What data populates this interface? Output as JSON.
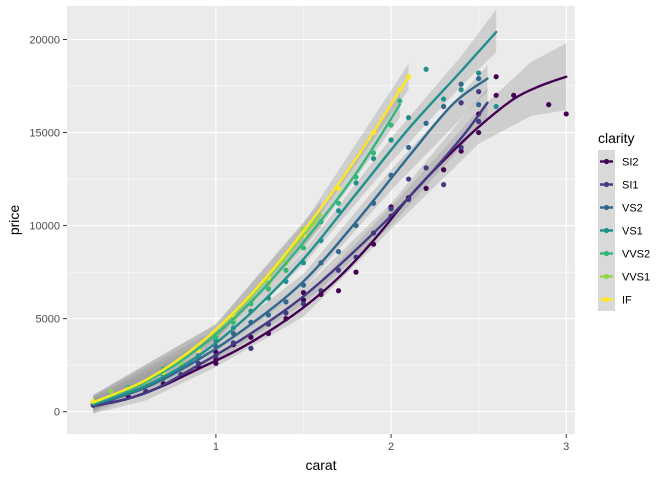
{
  "chart_data": {
    "type": "scatter",
    "xlabel": "carat",
    "ylabel": "price",
    "xlim": [
      0.15,
      3.05
    ],
    "ylim": [
      -1200,
      21800
    ],
    "x_ticks": [
      1,
      2,
      3
    ],
    "x_tick_labels": [
      "1",
      "2",
      "3"
    ],
    "y_ticks": [
      0,
      5000,
      10000,
      15000,
      20000
    ],
    "y_tick_labels": [
      "0",
      "5000",
      "10000",
      "15000",
      "20000"
    ],
    "grid": true,
    "legend": {
      "title": "clarity",
      "position": "right"
    },
    "smoothing": "loess fit with grey confidence band per series",
    "series": [
      {
        "name": "SI2",
        "color": "#440154",
        "points": [
          [
            0.3,
            350
          ],
          [
            0.5,
            800
          ],
          [
            0.7,
            1500
          ],
          [
            0.9,
            2400
          ],
          [
            1.0,
            2600
          ],
          [
            1.0,
            2800
          ],
          [
            1.0,
            3200
          ],
          [
            1.1,
            3600
          ],
          [
            1.2,
            4000
          ],
          [
            1.3,
            4200
          ],
          [
            1.4,
            5000
          ],
          [
            1.5,
            6000
          ],
          [
            1.5,
            6400
          ],
          [
            1.6,
            6300
          ],
          [
            1.7,
            6500
          ],
          [
            1.8,
            7500
          ],
          [
            1.9,
            9000
          ],
          [
            2.0,
            11000
          ],
          [
            2.0,
            10500
          ],
          [
            2.1,
            11500
          ],
          [
            2.2,
            12000
          ],
          [
            2.3,
            13000
          ],
          [
            2.4,
            14000
          ],
          [
            2.5,
            16000
          ],
          [
            2.5,
            15000
          ],
          [
            2.6,
            17000
          ],
          [
            2.6,
            18000
          ],
          [
            2.7,
            17000
          ],
          [
            2.9,
            16500
          ],
          [
            3.0,
            16000
          ]
        ],
        "fit": [
          [
            0.3,
            300
          ],
          [
            0.5,
            700
          ],
          [
            0.7,
            1400
          ],
          [
            0.9,
            2300
          ],
          [
            1.1,
            3200
          ],
          [
            1.3,
            4300
          ],
          [
            1.5,
            5600
          ],
          [
            1.7,
            7200
          ],
          [
            1.9,
            9200
          ],
          [
            2.1,
            11500
          ],
          [
            2.3,
            13500
          ],
          [
            2.5,
            15300
          ],
          [
            2.7,
            16800
          ],
          [
            2.85,
            17500
          ],
          [
            3.0,
            18000
          ]
        ],
        "band": [
          [
            0.3,
            -100,
            700
          ],
          [
            0.6,
            600,
            1300
          ],
          [
            1.0,
            2400,
            3100
          ],
          [
            1.5,
            5100,
            6100
          ],
          [
            2.0,
            9800,
            11000
          ],
          [
            2.5,
            14400,
            16200
          ],
          [
            2.8,
            15900,
            18800
          ],
          [
            3.0,
            16200,
            19800
          ]
        ]
      },
      {
        "name": "SI1",
        "color": "#443A83",
        "points": [
          [
            0.3,
            400
          ],
          [
            0.4,
            600
          ],
          [
            0.6,
            1100
          ],
          [
            0.8,
            2000
          ],
          [
            0.9,
            2600
          ],
          [
            1.0,
            3000
          ],
          [
            1.1,
            3700
          ],
          [
            1.2,
            3400
          ],
          [
            1.3,
            4700
          ],
          [
            1.4,
            5300
          ],
          [
            1.5,
            5800
          ],
          [
            1.6,
            6500
          ],
          [
            1.7,
            7600
          ],
          [
            1.8,
            8300
          ],
          [
            1.9,
            9600
          ],
          [
            2.0,
            10900
          ],
          [
            2.1,
            12500
          ],
          [
            2.1,
            11400
          ],
          [
            2.2,
            13100
          ],
          [
            2.3,
            12200
          ],
          [
            2.4,
            14200
          ],
          [
            2.4,
            16600
          ],
          [
            2.5,
            17200
          ],
          [
            2.5,
            15600
          ]
        ],
        "fit": [
          [
            0.3,
            300
          ],
          [
            0.6,
            1000
          ],
          [
            0.9,
            2500
          ],
          [
            1.2,
            4200
          ],
          [
            1.5,
            6200
          ],
          [
            1.8,
            8700
          ],
          [
            2.1,
            11500
          ],
          [
            2.4,
            14700
          ],
          [
            2.55,
            16600
          ]
        ],
        "band": [
          [
            0.3,
            -100,
            700
          ],
          [
            1.0,
            2700,
            3400
          ],
          [
            1.5,
            5800,
            6600
          ],
          [
            2.0,
            10000,
            11200
          ],
          [
            2.55,
            15800,
            17400
          ]
        ]
      },
      {
        "name": "VS2",
        "color": "#31688E",
        "points": [
          [
            0.3,
            450
          ],
          [
            0.5,
            1000
          ],
          [
            0.7,
            1800
          ],
          [
            0.9,
            2900
          ],
          [
            1.0,
            3500
          ],
          [
            1.1,
            4200
          ],
          [
            1.2,
            4800
          ],
          [
            1.3,
            5200
          ],
          [
            1.4,
            5900
          ],
          [
            1.5,
            6800
          ],
          [
            1.6,
            8000
          ],
          [
            1.7,
            8600
          ],
          [
            1.8,
            10000
          ],
          [
            1.9,
            11200
          ],
          [
            2.0,
            12700
          ],
          [
            2.1,
            14200
          ],
          [
            2.2,
            15500
          ],
          [
            2.3,
            16400
          ],
          [
            2.4,
            17600
          ],
          [
            2.5,
            17900
          ],
          [
            2.5,
            16500
          ]
        ],
        "fit": [
          [
            0.3,
            350
          ],
          [
            0.6,
            1300
          ],
          [
            0.9,
            2800
          ],
          [
            1.2,
            4700
          ],
          [
            1.5,
            7000
          ],
          [
            1.8,
            10200
          ],
          [
            2.1,
            13700
          ],
          [
            2.35,
            16500
          ],
          [
            2.55,
            17900
          ]
        ],
        "band": [
          [
            0.3,
            0,
            750
          ],
          [
            1.0,
            3200,
            3800
          ],
          [
            1.5,
            6600,
            7400
          ],
          [
            2.0,
            11900,
            13000
          ],
          [
            2.55,
            17200,
            18600
          ]
        ]
      },
      {
        "name": "VS1",
        "color": "#21908C",
        "points": [
          [
            0.3,
            500
          ],
          [
            0.5,
            1100
          ],
          [
            0.7,
            2000
          ],
          [
            0.9,
            3000
          ],
          [
            1.0,
            3800
          ],
          [
            1.1,
            4500
          ],
          [
            1.2,
            5400
          ],
          [
            1.3,
            6100
          ],
          [
            1.4,
            7000
          ],
          [
            1.5,
            8000
          ],
          [
            1.6,
            9200
          ],
          [
            1.7,
            10800
          ],
          [
            1.8,
            12300
          ],
          [
            1.9,
            13600
          ],
          [
            2.0,
            14600
          ],
          [
            2.1,
            15800
          ],
          [
            2.2,
            18400
          ],
          [
            2.3,
            16800
          ],
          [
            2.4,
            17300
          ],
          [
            2.5,
            18200
          ],
          [
            2.6,
            16400
          ]
        ],
        "fit": [
          [
            0.3,
            400
          ],
          [
            0.6,
            1400
          ],
          [
            0.9,
            3000
          ],
          [
            1.2,
            5300
          ],
          [
            1.5,
            8200
          ],
          [
            1.8,
            11700
          ],
          [
            2.1,
            15200
          ],
          [
            2.4,
            18300
          ],
          [
            2.6,
            20400
          ]
        ],
        "band": [
          [
            0.3,
            0,
            800
          ],
          [
            1.0,
            3500,
            4100
          ],
          [
            1.5,
            7900,
            8600
          ],
          [
            2.0,
            13400,
            14700
          ],
          [
            2.4,
            17500,
            19100
          ],
          [
            2.6,
            19300,
            21600
          ]
        ]
      },
      {
        "name": "VVS2",
        "color": "#35B779",
        "points": [
          [
            0.3,
            500
          ],
          [
            0.5,
            1300
          ],
          [
            0.7,
            2300
          ],
          [
            0.9,
            3400
          ],
          [
            1.0,
            4000
          ],
          [
            1.1,
            4800
          ],
          [
            1.2,
            5800
          ],
          [
            1.3,
            6600
          ],
          [
            1.4,
            7600
          ],
          [
            1.5,
            8800
          ],
          [
            1.6,
            10200
          ],
          [
            1.7,
            11200
          ],
          [
            1.8,
            12600
          ],
          [
            1.9,
            13900
          ],
          [
            2.0,
            15400
          ],
          [
            2.05,
            16700
          ]
        ],
        "fit": [
          [
            0.3,
            450
          ],
          [
            0.6,
            1600
          ],
          [
            0.9,
            3400
          ],
          [
            1.2,
            5900
          ],
          [
            1.5,
            9100
          ],
          [
            1.8,
            12800
          ],
          [
            2.05,
            16500
          ]
        ],
        "band": [
          [
            0.3,
            50,
            850
          ],
          [
            1.0,
            3800,
            4400
          ],
          [
            1.5,
            8700,
            9500
          ],
          [
            2.05,
            15800,
            17300
          ]
        ]
      },
      {
        "name": "VVS1",
        "color": "#8FD744",
        "points": [
          [
            0.3,
            500
          ],
          [
            0.4,
            1100
          ],
          [
            0.6,
            1500
          ],
          [
            0.8,
            2600
          ],
          [
            1.0,
            4200
          ],
          [
            1.1,
            5000
          ],
          [
            1.2,
            6000
          ],
          [
            1.3,
            6900
          ],
          [
            1.4,
            8000
          ],
          [
            1.5,
            9800
          ],
          [
            1.55,
            10100
          ]
        ],
        "fit": [
          [
            0.3,
            500
          ],
          [
            0.6,
            1700
          ],
          [
            0.9,
            3600
          ],
          [
            1.2,
            6200
          ],
          [
            1.5,
            9500
          ],
          [
            1.6,
            10600
          ]
        ],
        "band": [
          [
            0.3,
            100,
            900
          ],
          [
            1.0,
            3900,
            4700
          ],
          [
            1.6,
            9900,
            11300
          ]
        ]
      },
      {
        "name": "IF",
        "color": "#FDE725",
        "points": [
          [
            0.3,
            550
          ],
          [
            0.5,
            1200
          ],
          [
            0.7,
            2100
          ],
          [
            0.9,
            3300
          ],
          [
            1.1,
            5200
          ],
          [
            1.3,
            7200
          ],
          [
            1.5,
            9500
          ],
          [
            1.7,
            12000
          ],
          [
            1.9,
            15000
          ],
          [
            2.05,
            17300
          ],
          [
            2.1,
            18000
          ]
        ],
        "fit": [
          [
            0.3,
            500
          ],
          [
            0.6,
            1700
          ],
          [
            0.9,
            3600
          ],
          [
            1.2,
            6300
          ],
          [
            1.5,
            9700
          ],
          [
            1.8,
            13600
          ],
          [
            2.1,
            18000
          ]
        ],
        "band": [
          [
            0.3,
            100,
            900
          ],
          [
            1.0,
            3900,
            4700
          ],
          [
            1.5,
            9300,
            10100
          ],
          [
            2.1,
            17300,
            18700
          ]
        ]
      }
    ]
  }
}
